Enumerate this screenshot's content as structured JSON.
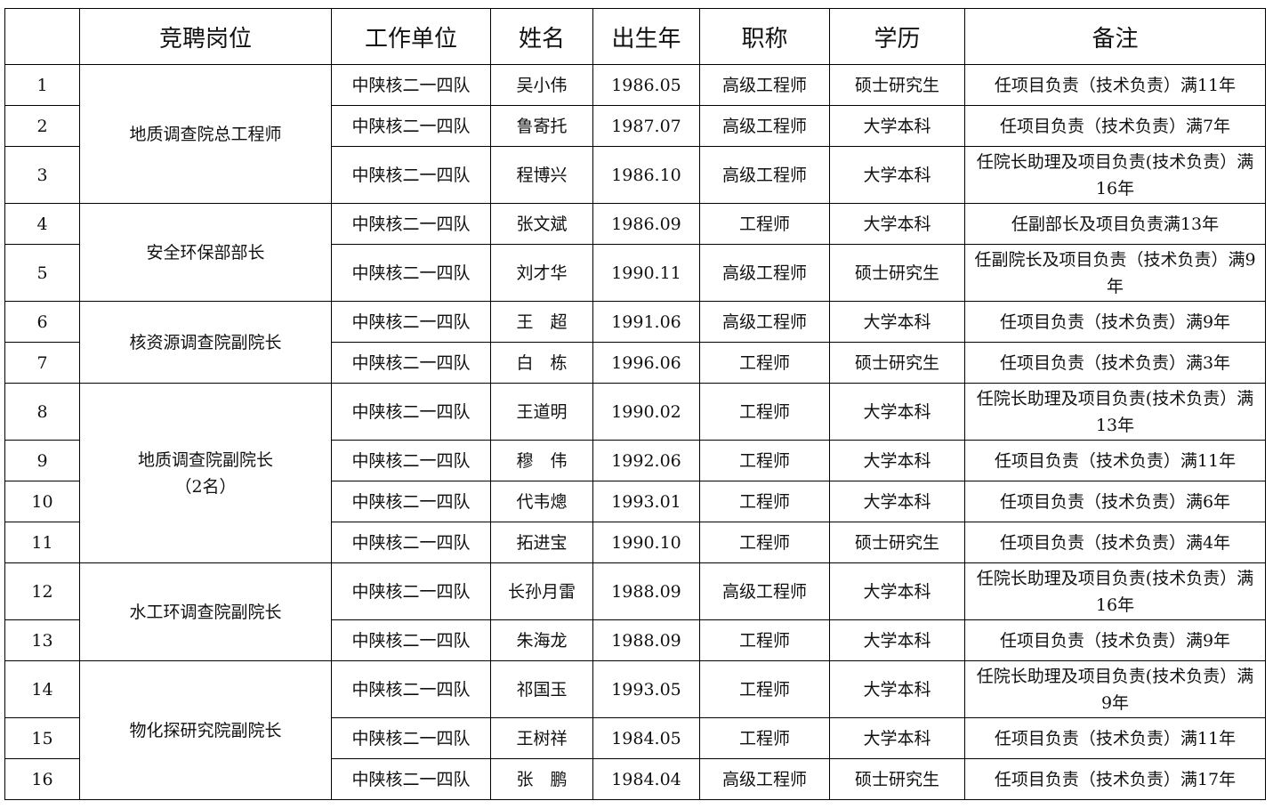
{
  "headers": [
    "",
    "竞聘岗位",
    "工作单位",
    "姓名",
    "出生年",
    "职称",
    "学历",
    "备注"
  ],
  "groups": [
    {
      "post": "地质调查院总工程师",
      "rows": [
        {
          "no": "1",
          "unit": "中陕核二一四队",
          "name": "吴小伟",
          "birth": "1986.05",
          "title": "高级工程师",
          "edu": "硕士研究生",
          "note": "任项目负责（技术负责）满11年"
        },
        {
          "no": "2",
          "unit": "中陕核二一四队",
          "name": "鲁寄托",
          "birth": "1987.07",
          "title": "高级工程师",
          "edu": "大学本科",
          "note": "任项目负责（技术负责）满7年"
        },
        {
          "no": "3",
          "unit": "中陕核二一四队",
          "name": "程博兴",
          "birth": "1986.10",
          "title": "高级工程师",
          "edu": "大学本科",
          "note": "任院长助理及项目负责(技术负责）满16年"
        }
      ]
    },
    {
      "post": "安全环保部部长",
      "rows": [
        {
          "no": "4",
          "unit": "中陕核二一四队",
          "name": "张文斌",
          "birth": "1986.09",
          "title": "工程师",
          "edu": "大学本科",
          "note": "任副部长及项目负责满13年"
        },
        {
          "no": "5",
          "unit": "中陕核二一四队",
          "name": "刘才华",
          "birth": "1990.11",
          "title": "高级工程师",
          "edu": "硕士研究生",
          "note": "任副院长及项目负责（技术负责）满9年"
        }
      ]
    },
    {
      "post": "核资源调查院副院长",
      "rows": [
        {
          "no": "6",
          "unit": "中陕核二一四队",
          "name": "王　超",
          "birth": "1991.06",
          "title": "高级工程师",
          "edu": "大学本科",
          "note": "任项目负责（技术负责）满9年"
        },
        {
          "no": "7",
          "unit": "中陕核二一四队",
          "name": "白　栋",
          "birth": "1996.06",
          "title": "工程师",
          "edu": "硕士研究生",
          "note": "任项目负责（技术负责）满3年"
        }
      ]
    },
    {
      "post": "地质调查院副院长（2名）",
      "rows": [
        {
          "no": "8",
          "unit": "中陕核二一四队",
          "name": "王道明",
          "birth": "1990.02",
          "title": "工程师",
          "edu": "大学本科",
          "note": "任院长助理及项目负责(技术负责）满13年"
        },
        {
          "no": "9",
          "unit": "中陕核二一四队",
          "name": "穆　伟",
          "birth": "1992.06",
          "title": "工程师",
          "edu": "大学本科",
          "note": "任项目负责（技术负责）满11年"
        },
        {
          "no": "10",
          "unit": "中陕核二一四队",
          "name": "代韦熜",
          "birth": "1993.01",
          "title": "工程师",
          "edu": "大学本科",
          "note": "任项目负责（技术负责）满6年"
        },
        {
          "no": "11",
          "unit": "中陕核二一四队",
          "name": "拓进宝",
          "birth": "1990.10",
          "title": "工程师",
          "edu": "硕士研究生",
          "note": "任项目负责（技术负责）满4年"
        }
      ]
    },
    {
      "post": "水工环调查院副院长",
      "rows": [
        {
          "no": "12",
          "unit": "中陕核二一四队",
          "name": "长孙月雷",
          "birth": "1988.09",
          "title": "高级工程师",
          "edu": "大学本科",
          "note": "任院长助理及项目负责(技术负责）满16年"
        },
        {
          "no": "13",
          "unit": "中陕核二一四队",
          "name": "朱海龙",
          "birth": "1988.09",
          "title": "工程师",
          "edu": "大学本科",
          "note": "任项目负责（技术负责）满9年"
        }
      ]
    },
    {
      "post": "物化探研究院副院长",
      "rows": [
        {
          "no": "14",
          "unit": "中陕核二一四队",
          "name": "祁国玉",
          "birth": "1993.05",
          "title": "工程师",
          "edu": "大学本科",
          "note": "任院长助理及项目负责(技术负责）满9年"
        },
        {
          "no": "15",
          "unit": "中陕核二一四队",
          "name": "王树祥",
          "birth": "1984.05",
          "title": "工程师",
          "edu": "大学本科",
          "note": "任项目负责（技术负责）满11年"
        },
        {
          "no": "16",
          "unit": "中陕核二一四队",
          "name": "张　鹏",
          "birth": "1984.04",
          "title": "高级工程师",
          "edu": "硕士研究生",
          "note": "任项目负责（技术负责）满17年"
        }
      ]
    }
  ]
}
